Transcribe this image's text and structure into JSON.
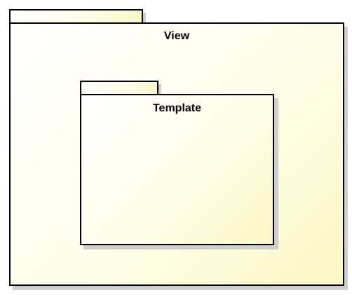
{
  "diagram": {
    "packages": [
      {
        "id": "view",
        "label": "View",
        "contains": [
          "template"
        ]
      },
      {
        "id": "template",
        "label": "Template",
        "contains": []
      }
    ],
    "colors": {
      "fill_light": "#ffffff",
      "fill_yellow": "#fbf7c4",
      "border": "#000000",
      "shadow": "#cfcfcf"
    }
  }
}
